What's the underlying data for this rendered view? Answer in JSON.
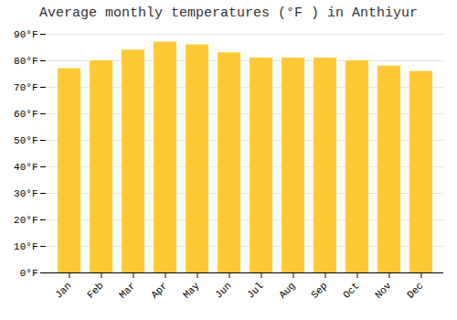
{
  "chart_data": {
    "type": "bar",
    "title": "Average monthly temperatures (°F ) in Anthiyur",
    "categories": [
      "Jan",
      "Feb",
      "Mar",
      "Apr",
      "May",
      "Jun",
      "Jul",
      "Aug",
      "Sep",
      "Oct",
      "Nov",
      "Dec"
    ],
    "values": [
      77,
      80,
      84,
      87,
      86,
      83,
      81,
      81,
      81,
      80,
      78,
      76
    ],
    "color": "#FFC835",
    "ylim": [
      0,
      90
    ],
    "yticks": [
      {
        "value": 0,
        "label": "0°F"
      },
      {
        "value": 10,
        "label": "10°F"
      },
      {
        "value": 20,
        "label": "20°F"
      },
      {
        "value": 30,
        "label": "30°F"
      },
      {
        "value": 40,
        "label": "40°F"
      },
      {
        "value": 50,
        "label": "50°F"
      },
      {
        "value": 60,
        "label": "60°F"
      },
      {
        "value": 70,
        "label": "70°F"
      },
      {
        "value": 80,
        "label": "80°F"
      },
      {
        "value": 90,
        "label": "90°F"
      }
    ],
    "grid": true
  }
}
